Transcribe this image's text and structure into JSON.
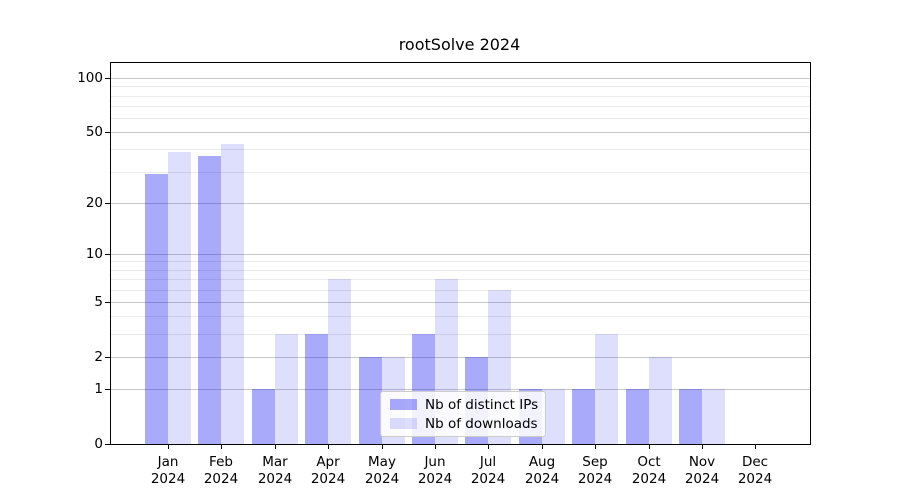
{
  "title": "rootSolve 2024",
  "colors": {
    "distinct_ips": "rgba(10,10,240,0.345)",
    "downloads": "rgba(10,10,240,0.135)",
    "grid_major": "#c9c9c9",
    "grid_minor": "#eaeaea",
    "axis": "#000000"
  },
  "chart_data": {
    "type": "bar",
    "title": "rootSolve 2024",
    "categories": [
      "Jan 2024",
      "Feb 2024",
      "Mar 2024",
      "Apr 2024",
      "May 2024",
      "Jun 2024",
      "Jul 2024",
      "Aug 2024",
      "Sep 2024",
      "Oct 2024",
      "Nov 2024",
      "Dec 2024"
    ],
    "months": [
      "Jan",
      "Feb",
      "Mar",
      "Apr",
      "May",
      "Jun",
      "Jul",
      "Aug",
      "Sep",
      "Oct",
      "Nov",
      "Dec"
    ],
    "year_label": "2024",
    "series": [
      {
        "name": "Nb of distinct IPs",
        "values": [
          29,
          37,
          1,
          3,
          2,
          3,
          2,
          1,
          1,
          1,
          1,
          0
        ]
      },
      {
        "name": "Nb of downloads",
        "values": [
          39,
          43,
          3,
          7,
          2,
          7,
          6,
          1,
          3,
          2,
          1,
          0
        ]
      }
    ],
    "y_scale": "log1p",
    "y_ticks": [
      0,
      1,
      2,
      5,
      10,
      20,
      50,
      100
    ],
    "y_minor_gridlines": [
      3,
      4,
      6,
      7,
      8,
      9,
      30,
      40,
      60,
      70,
      80,
      90
    ],
    "ylim": [
      0,
      130
    ],
    "legend_position": "lower center",
    "grid": true
  }
}
